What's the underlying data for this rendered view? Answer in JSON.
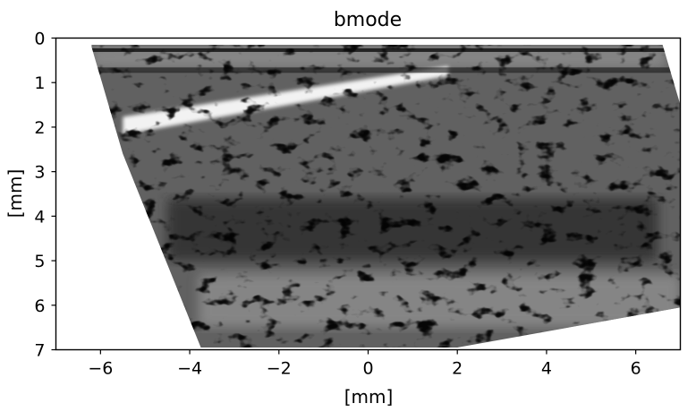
{
  "chart_data": {
    "type": "heatmap",
    "colormap": "gray",
    "title": "bmode",
    "xlabel": "[mm]",
    "ylabel": "[mm]",
    "xlim": [
      -7,
      7
    ],
    "ylim": [
      7,
      0
    ],
    "y_inverted": true,
    "x_ticks": [
      -6,
      -4,
      -2,
      0,
      2,
      4,
      6
    ],
    "x_tick_labels": [
      "−6",
      "−4",
      "−2",
      "0",
      "2",
      "4",
      "6"
    ],
    "y_ticks": [
      0,
      1,
      2,
      3,
      4,
      5,
      6,
      7
    ],
    "y_tick_labels": [
      "0",
      "1",
      "2",
      "3",
      "4",
      "5",
      "6",
      "7"
    ],
    "grid": false,
    "legend": "none",
    "image_region_polygon_mm": [
      [
        -6.2,
        0.15
      ],
      [
        6.6,
        0.15
      ],
      [
        7.0,
        1.5
      ],
      [
        7.0,
        6.05
      ],
      [
        2.0,
        6.95
      ],
      [
        -3.75,
        6.95
      ],
      [
        -5.5,
        2.6
      ],
      [
        -6.2,
        0.2
      ]
    ],
    "features": [
      {
        "label": "bright top band",
        "x": [
          -6.2,
          6.7
        ],
        "y": [
          0.15,
          0.7
        ],
        "intensity": 0.55
      },
      {
        "label": "bright oblique streak",
        "from": [
          -5.5,
          2.05
        ],
        "to": [
          1.8,
          0.75
        ],
        "intensity": 0.95
      },
      {
        "label": "dark band",
        "x": [
          -4.5,
          6.5
        ],
        "y": [
          3.6,
          5.0
        ],
        "intensity": 0.18
      },
      {
        "label": "mid-bright deep band",
        "x": [
          -3.8,
          7.0
        ],
        "y": [
          5.3,
          6.5
        ],
        "intensity": 0.55
      }
    ]
  }
}
